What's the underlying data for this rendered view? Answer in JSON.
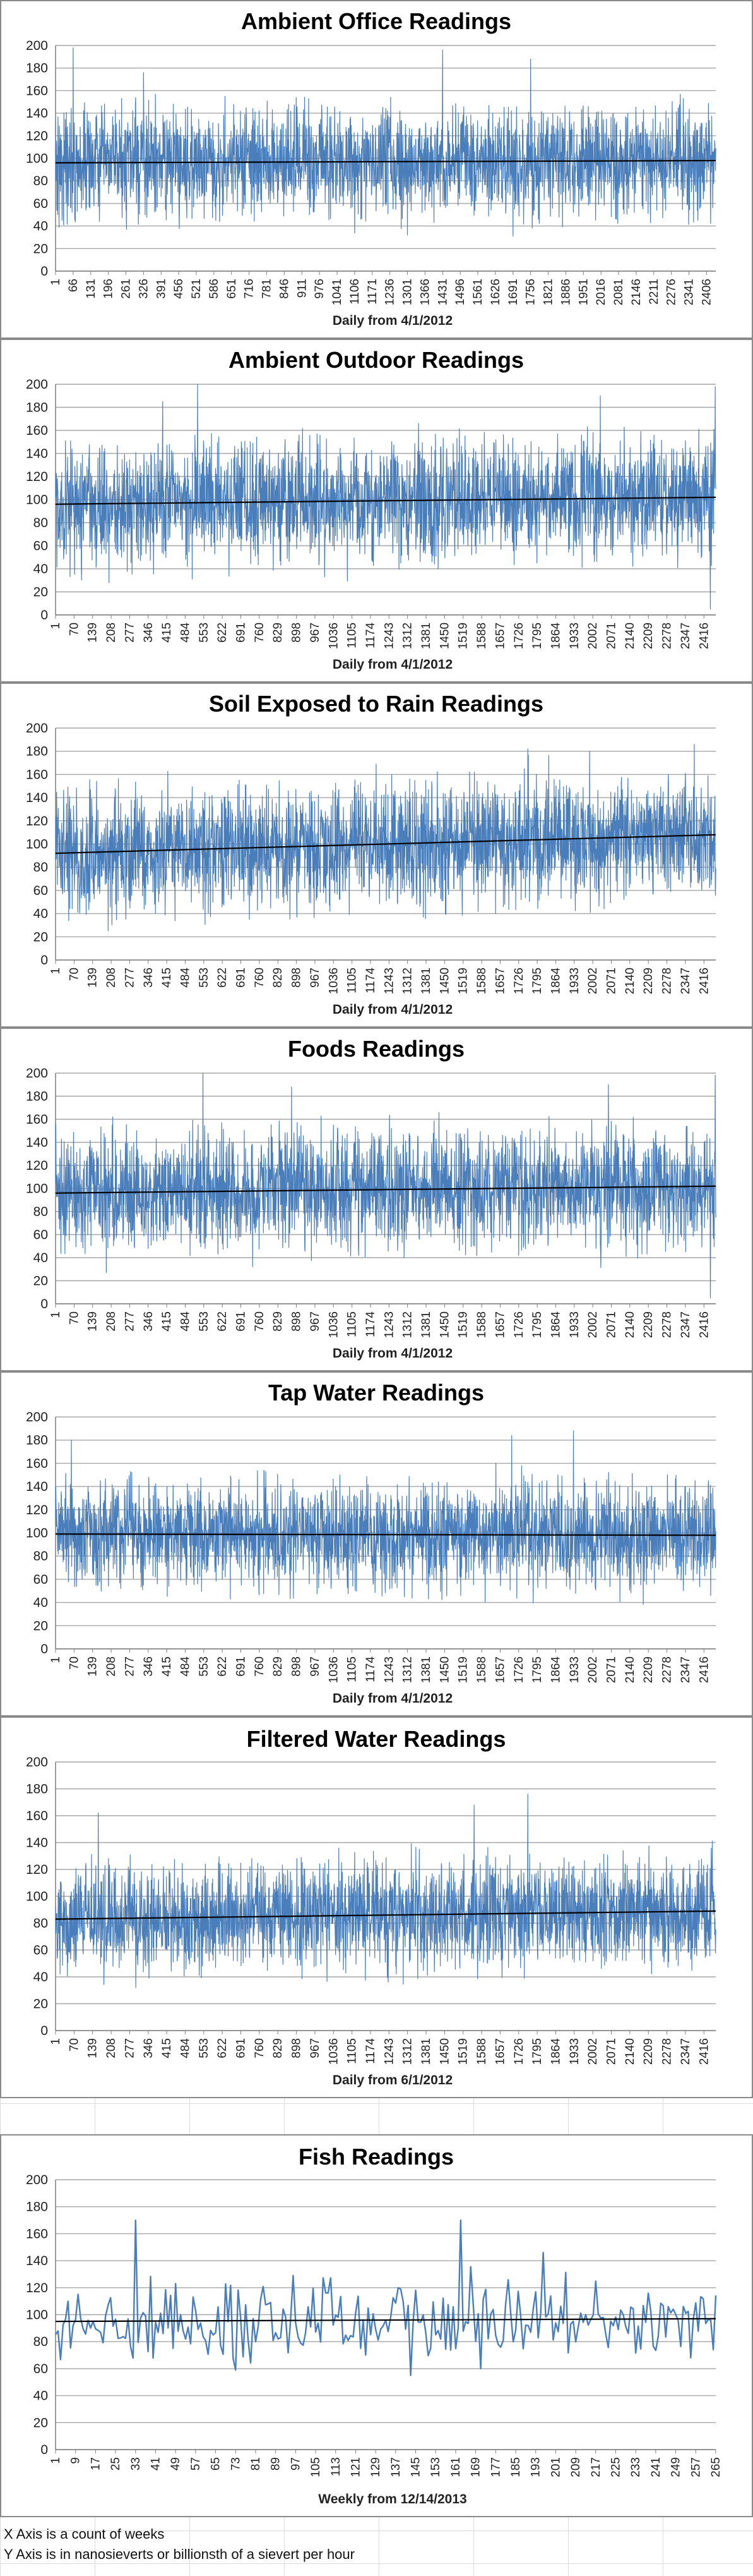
{
  "colors": {
    "series": "#4a7ebb",
    "trend": "#000000",
    "grid": "#a6a6a6",
    "background": "#ffffff"
  },
  "notes": [
    "X Axis is a count of weeks",
    "Y Axis is in nanosieverts or billionsth of a sievert per hour"
  ],
  "chart_data": [
    {
      "type": "line",
      "title": "Ambient Office Readings",
      "xlabel": "Daily from 4/1/2012",
      "ylabel": "",
      "ylim": [
        0,
        200
      ],
      "yticks": [
        0,
        20,
        40,
        60,
        80,
        100,
        120,
        140,
        160,
        180,
        200
      ],
      "x_range": [
        1,
        2440
      ],
      "x_ticks": [
        1,
        66,
        131,
        196,
        261,
        326,
        391,
        456,
        521,
        586,
        651,
        716,
        781,
        846,
        911,
        976,
        1041,
        1106,
        1171,
        1236,
        1301,
        1366,
        1431,
        1496,
        1561,
        1626,
        1691,
        1756,
        1821,
        1886,
        1951,
        2016,
        2081,
        2146,
        2211,
        2276,
        2341,
        2406
      ],
      "series_summary": {
        "n": 2440,
        "mean": 96,
        "typical_low": 55,
        "typical_high": 140,
        "peaks": [
          [
            66,
            198
          ],
          [
            1431,
            196
          ],
          [
            1756,
            188
          ],
          [
            326,
            176
          ],
          [
            1301,
            32
          ],
          [
            1691,
            31
          ]
        ]
      },
      "trend": [
        96,
        98
      ],
      "grid": true,
      "legend": "none"
    },
    {
      "type": "line",
      "title": "Ambient Outdoor Readings",
      "xlabel": "Daily from 4/1/2012",
      "ylabel": "",
      "ylim": [
        0,
        200
      ],
      "yticks": [
        0,
        20,
        40,
        60,
        80,
        100,
        120,
        140,
        160,
        180,
        200
      ],
      "x_range": [
        1,
        2460
      ],
      "x_ticks": [
        1,
        70,
        139,
        208,
        277,
        346,
        415,
        484,
        553,
        622,
        691,
        760,
        829,
        898,
        967,
        1036,
        1105,
        1174,
        1243,
        1312,
        1381,
        1450,
        1519,
        1588,
        1657,
        1726,
        1795,
        1864,
        1933,
        2002,
        2071,
        2140,
        2209,
        2278,
        2347,
        2416
      ],
      "series_summary": {
        "n": 2460,
        "mean": 99,
        "typical_low": 55,
        "typical_high": 145,
        "peaks": [
          [
            530,
            200
          ],
          [
            2458,
            198
          ],
          [
            2030,
            190
          ],
          [
            400,
            185
          ],
          [
            2440,
            5
          ],
          [
            200,
            28
          ]
        ]
      },
      "trend": [
        96,
        102
      ],
      "grid": true,
      "legend": "none"
    },
    {
      "type": "line",
      "title": "Soil Exposed to Rain Readings",
      "xlabel": "Daily from 4/1/2012",
      "ylabel": "",
      "ylim": [
        0,
        200
      ],
      "yticks": [
        0,
        20,
        40,
        60,
        80,
        100,
        120,
        140,
        160,
        180,
        200
      ],
      "x_range": [
        1,
        2460
      ],
      "x_ticks": [
        1,
        70,
        139,
        208,
        277,
        346,
        415,
        484,
        553,
        622,
        691,
        760,
        829,
        898,
        967,
        1036,
        1105,
        1174,
        1243,
        1312,
        1381,
        1450,
        1519,
        1588,
        1657,
        1726,
        1795,
        1864,
        1933,
        2002,
        2071,
        2140,
        2209,
        2278,
        2347,
        2416
      ],
      "series_summary": {
        "n": 2460,
        "mean": 100,
        "typical_low": 60,
        "typical_high": 150,
        "peaks": [
          [
            2380,
            186
          ],
          [
            1760,
            182
          ],
          [
            1990,
            180
          ],
          [
            900,
            37
          ],
          [
            1640,
            40
          ]
        ]
      },
      "trend": [
        92,
        108
      ],
      "grid": true,
      "legend": "none"
    },
    {
      "type": "line",
      "title": "Foods Readings",
      "xlabel": "Daily from 4/1/2012",
      "ylabel": "",
      "ylim": [
        0,
        200
      ],
      "yticks": [
        0,
        20,
        40,
        60,
        80,
        100,
        120,
        140,
        160,
        180,
        200
      ],
      "x_range": [
        1,
        2460
      ],
      "x_ticks": [
        1,
        70,
        139,
        208,
        277,
        346,
        415,
        484,
        553,
        622,
        691,
        760,
        829,
        898,
        967,
        1036,
        1105,
        1174,
        1243,
        1312,
        1381,
        1450,
        1519,
        1588,
        1657,
        1726,
        1795,
        1864,
        1933,
        2002,
        2071,
        2140,
        2209,
        2278,
        2347,
        2416
      ],
      "series_summary": {
        "n": 2460,
        "mean": 99,
        "typical_low": 55,
        "typical_high": 145,
        "peaks": [
          [
            550,
            200
          ],
          [
            2458,
            198
          ],
          [
            2060,
            190
          ],
          [
            880,
            188
          ],
          [
            2440,
            5
          ],
          [
            190,
            27
          ]
        ]
      },
      "trend": [
        96,
        102
      ],
      "grid": true,
      "legend": "none"
    },
    {
      "type": "line",
      "title": "Tap Water Readings",
      "xlabel": "Daily from 4/1/2012",
      "ylabel": "",
      "ylim": [
        0,
        200
      ],
      "yticks": [
        0,
        20,
        40,
        60,
        80,
        100,
        120,
        140,
        160,
        180,
        200
      ],
      "x_range": [
        1,
        2460
      ],
      "x_ticks": [
        1,
        70,
        139,
        208,
        277,
        346,
        415,
        484,
        553,
        622,
        691,
        760,
        829,
        898,
        967,
        1036,
        1105,
        1174,
        1243,
        1312,
        1381,
        1450,
        1519,
        1588,
        1657,
        1726,
        1795,
        1864,
        1933,
        2002,
        2071,
        2140,
        2209,
        2278,
        2347,
        2416
      ],
      "series_summary": {
        "n": 2460,
        "mean": 99,
        "typical_low": 60,
        "typical_high": 140,
        "peaks": [
          [
            1930,
            188
          ],
          [
            1700,
            184
          ],
          [
            60,
            180
          ],
          [
            1300,
            45
          ]
        ]
      },
      "trend": [
        99,
        98
      ],
      "grid": true,
      "legend": "none"
    },
    {
      "type": "line",
      "title": "Filtered Water Readings",
      "xlabel": "Daily from 6/1/2012",
      "ylabel": "",
      "ylim": [
        0,
        200
      ],
      "yticks": [
        0,
        20,
        40,
        60,
        80,
        100,
        120,
        140,
        160,
        180,
        200
      ],
      "x_range": [
        1,
        2460
      ],
      "x_ticks": [
        1,
        70,
        139,
        208,
        277,
        346,
        415,
        484,
        553,
        622,
        691,
        760,
        829,
        898,
        967,
        1036,
        1105,
        1174,
        1243,
        1312,
        1381,
        1450,
        1519,
        1588,
        1657,
        1726,
        1795,
        1864,
        1933,
        2002,
        2071,
        2140,
        2209,
        2278,
        2347,
        2416
      ],
      "series_summary": {
        "n": 2460,
        "mean": 86,
        "typical_low": 55,
        "typical_high": 125,
        "peaks": [
          [
            1760,
            176
          ],
          [
            1560,
            168
          ],
          [
            160,
            162
          ],
          [
            300,
            32
          ],
          [
            1240,
            36
          ]
        ]
      },
      "trend": [
        83,
        89
      ],
      "grid": true,
      "legend": "none"
    },
    {
      "type": "line",
      "title": "Fish Readings",
      "xlabel": "Weekly from 12/14/2013",
      "ylabel": "",
      "ylim": [
        0,
        200
      ],
      "yticks": [
        0,
        20,
        40,
        60,
        80,
        100,
        120,
        140,
        160,
        180,
        200
      ],
      "x_range": [
        1,
        265
      ],
      "x_ticks": [
        1,
        9,
        17,
        25,
        33,
        41,
        49,
        57,
        65,
        73,
        81,
        89,
        97,
        105,
        113,
        121,
        129,
        137,
        145,
        153,
        161,
        169,
        177,
        185,
        193,
        201,
        209,
        217,
        225,
        233,
        241,
        249,
        257,
        265
      ],
      "series_summary": {
        "n": 265,
        "mean": 96,
        "typical_low": 70,
        "typical_high": 125,
        "peaks": [
          [
            33,
            170
          ],
          [
            163,
            170
          ],
          [
            196,
            146
          ],
          [
            143,
            55
          ]
        ]
      },
      "trend": [
        95,
        97
      ],
      "grid": true,
      "legend": "none"
    }
  ]
}
